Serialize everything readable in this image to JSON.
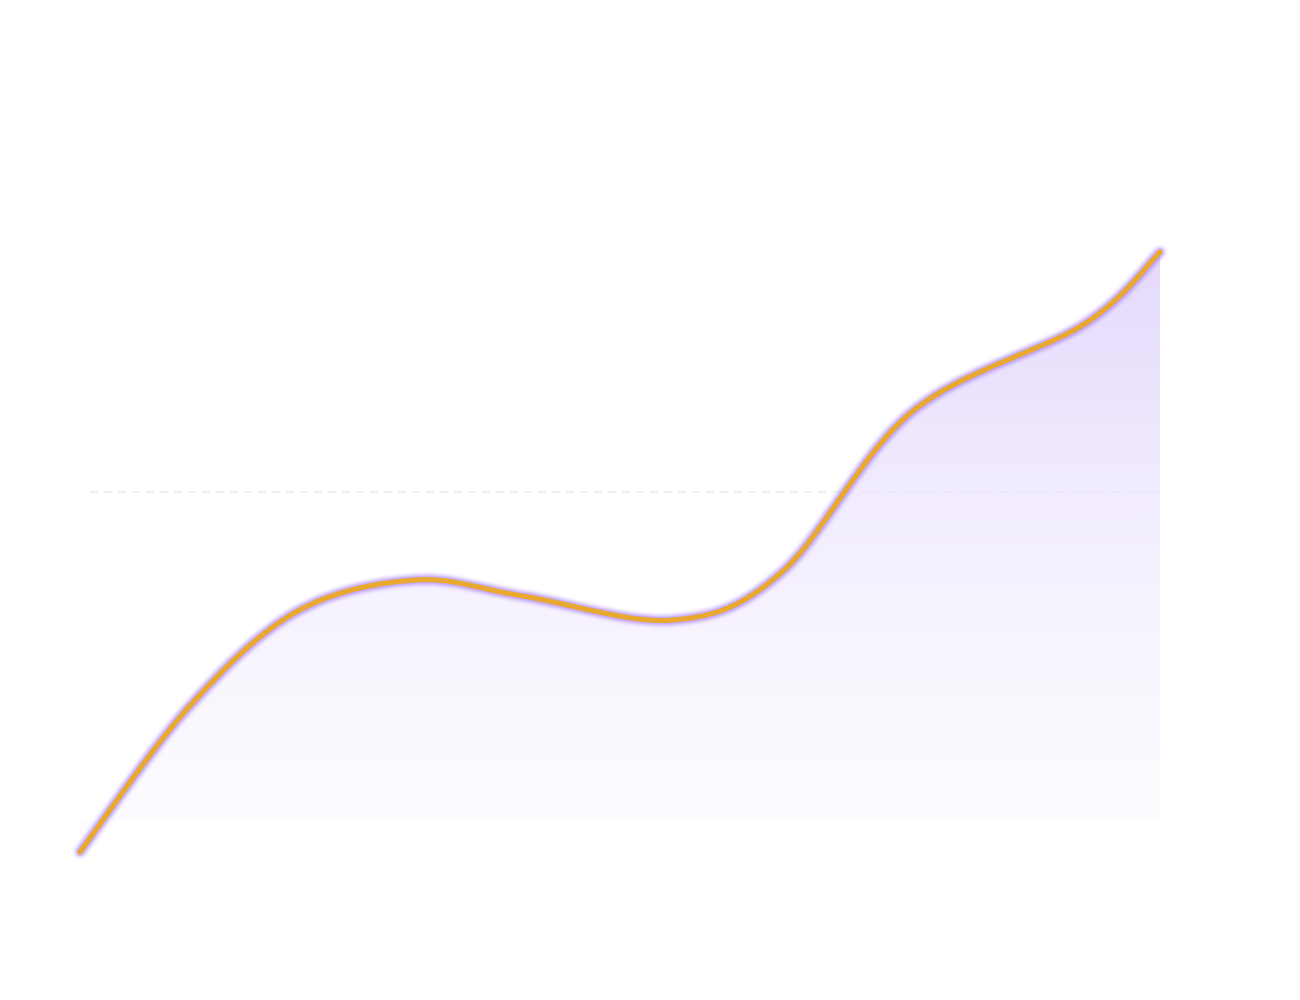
{
  "chart_data": {
    "type": "area",
    "title": "",
    "xlabel": "",
    "ylabel": "",
    "x": [
      0,
      1,
      2,
      3.1,
      4.1,
      5.5,
      6.5,
      7.7,
      9.3,
      10
    ],
    "series": [
      {
        "values": [
          6,
          24,
          36,
          40,
          38,
          35,
          41,
          61,
          72,
          81
        ]
      }
    ],
    "xlim": [
      0,
      10
    ],
    "ylim": [
      0,
      100
    ],
    "grid": true,
    "smooth": true,
    "line_color": "#e8a92e",
    "glow_color": "#a67cf5",
    "fill_color": "#e4d9fc"
  }
}
